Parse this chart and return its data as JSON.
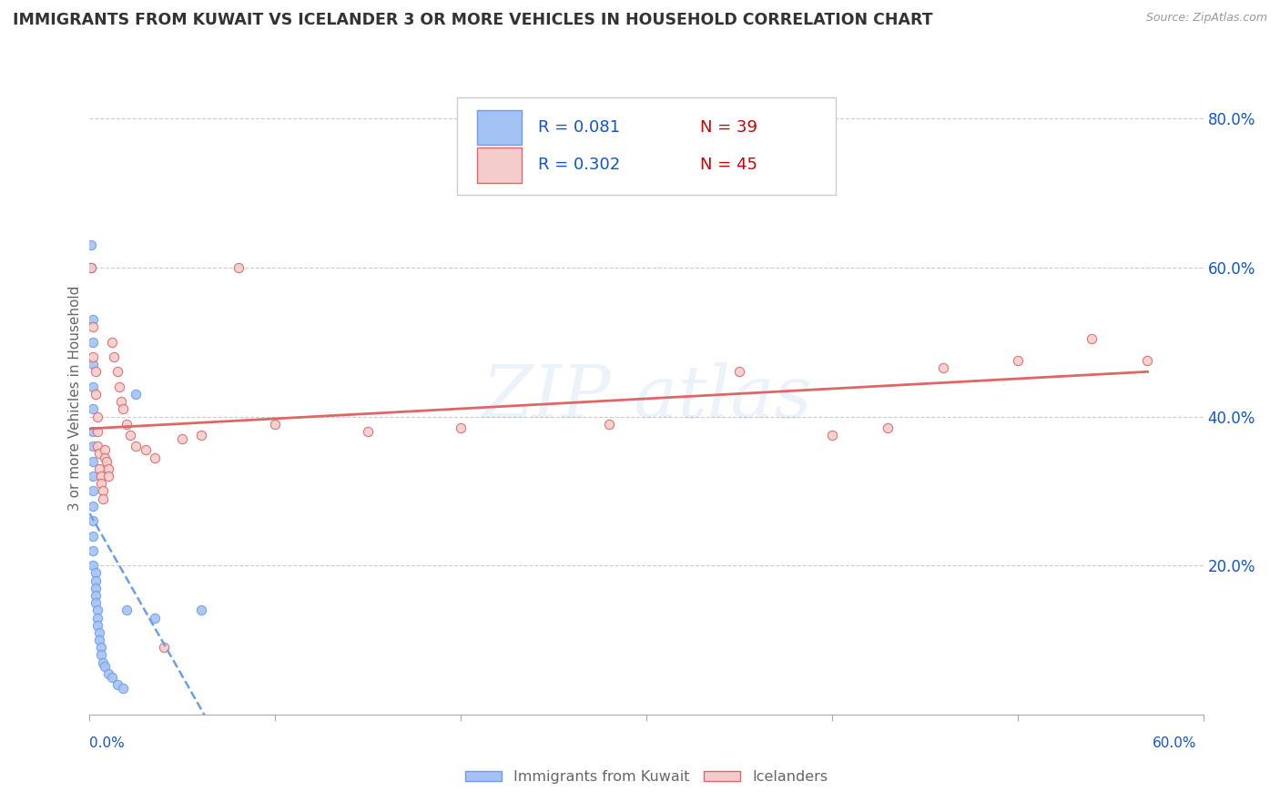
{
  "title": "IMMIGRANTS FROM KUWAIT VS ICELANDER 3 OR MORE VEHICLES IN HOUSEHOLD CORRELATION CHART",
  "source": "Source: ZipAtlas.com",
  "ylabel": "3 or more Vehicles in Household",
  "xmin": 0.0,
  "xmax": 0.6,
  "ymin": 0.0,
  "ymax": 0.85,
  "legend1_r": "0.081",
  "legend1_n": "39",
  "legend2_r": "0.302",
  "legend2_n": "45",
  "blue_fill": "#a4c2f4",
  "blue_edge": "#6d9eeb",
  "pink_fill": "#f4cccc",
  "pink_edge": "#e06666",
  "blue_line": "#6d9eeb",
  "pink_line": "#e06666",
  "text_blue": "#1155cc",
  "text_dark": "#333333",
  "text_gray": "#666666",
  "grid_color": "#cccccc",
  "kuwait_points": [
    [
      0.001,
      0.63
    ],
    [
      0.001,
      0.6
    ],
    [
      0.002,
      0.53
    ],
    [
      0.002,
      0.5
    ],
    [
      0.002,
      0.47
    ],
    [
      0.002,
      0.44
    ],
    [
      0.002,
      0.41
    ],
    [
      0.002,
      0.38
    ],
    [
      0.002,
      0.36
    ],
    [
      0.002,
      0.34
    ],
    [
      0.002,
      0.32
    ],
    [
      0.002,
      0.3
    ],
    [
      0.002,
      0.28
    ],
    [
      0.002,
      0.26
    ],
    [
      0.002,
      0.24
    ],
    [
      0.002,
      0.22
    ],
    [
      0.002,
      0.2
    ],
    [
      0.003,
      0.19
    ],
    [
      0.003,
      0.18
    ],
    [
      0.003,
      0.17
    ],
    [
      0.003,
      0.16
    ],
    [
      0.003,
      0.15
    ],
    [
      0.004,
      0.14
    ],
    [
      0.004,
      0.13
    ],
    [
      0.004,
      0.12
    ],
    [
      0.005,
      0.11
    ],
    [
      0.005,
      0.1
    ],
    [
      0.006,
      0.09
    ],
    [
      0.006,
      0.08
    ],
    [
      0.007,
      0.07
    ],
    [
      0.008,
      0.065
    ],
    [
      0.01,
      0.055
    ],
    [
      0.012,
      0.05
    ],
    [
      0.015,
      0.04
    ],
    [
      0.018,
      0.035
    ],
    [
      0.02,
      0.14
    ],
    [
      0.025,
      0.43
    ],
    [
      0.035,
      0.13
    ],
    [
      0.06,
      0.14
    ]
  ],
  "iceland_points": [
    [
      0.001,
      0.6
    ],
    [
      0.002,
      0.52
    ],
    [
      0.002,
      0.48
    ],
    [
      0.003,
      0.46
    ],
    [
      0.003,
      0.43
    ],
    [
      0.004,
      0.4
    ],
    [
      0.004,
      0.38
    ],
    [
      0.004,
      0.36
    ],
    [
      0.005,
      0.35
    ],
    [
      0.005,
      0.33
    ],
    [
      0.006,
      0.32
    ],
    [
      0.006,
      0.31
    ],
    [
      0.007,
      0.3
    ],
    [
      0.007,
      0.29
    ],
    [
      0.008,
      0.355
    ],
    [
      0.008,
      0.345
    ],
    [
      0.009,
      0.34
    ],
    [
      0.01,
      0.33
    ],
    [
      0.01,
      0.32
    ],
    [
      0.012,
      0.5
    ],
    [
      0.013,
      0.48
    ],
    [
      0.015,
      0.46
    ],
    [
      0.016,
      0.44
    ],
    [
      0.017,
      0.42
    ],
    [
      0.018,
      0.41
    ],
    [
      0.02,
      0.39
    ],
    [
      0.022,
      0.375
    ],
    [
      0.025,
      0.36
    ],
    [
      0.03,
      0.355
    ],
    [
      0.035,
      0.345
    ],
    [
      0.04,
      0.09
    ],
    [
      0.05,
      0.37
    ],
    [
      0.06,
      0.375
    ],
    [
      0.08,
      0.6
    ],
    [
      0.1,
      0.39
    ],
    [
      0.15,
      0.38
    ],
    [
      0.2,
      0.385
    ],
    [
      0.28,
      0.39
    ],
    [
      0.35,
      0.46
    ],
    [
      0.4,
      0.375
    ],
    [
      0.43,
      0.385
    ],
    [
      0.46,
      0.465
    ],
    [
      0.5,
      0.475
    ],
    [
      0.54,
      0.505
    ],
    [
      0.57,
      0.475
    ]
  ]
}
